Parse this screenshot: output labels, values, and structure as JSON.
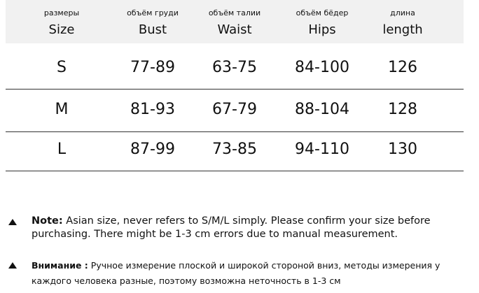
{
  "table": {
    "headers": [
      {
        "ru": "размеры",
        "en": "Size"
      },
      {
        "ru": "объём груди",
        "en": "Bust"
      },
      {
        "ru": "объём талии",
        "en": "Waist"
      },
      {
        "ru": "объём бёдер",
        "en": "Hips"
      },
      {
        "ru": "длина",
        "en": "length"
      }
    ],
    "rows": [
      [
        "S",
        "77-89",
        "63-75",
        "84-100",
        "126"
      ],
      [
        "M",
        "81-93",
        "67-79",
        "88-104",
        "128"
      ],
      [
        "L",
        "87-99",
        "73-85",
        "94-110",
        "130"
      ]
    ]
  },
  "notes": [
    {
      "label": "Note:",
      "text": "Asian size, never refers to S/M/L simply. Please confirm your size before purchasing. There might be 1-3 cm errors due to manual measurement."
    },
    {
      "label": "Внимание :",
      "text": "Ручное измерение плоской и широкой стороной вниз, методы измерения у каждого человека разные, поэтому возможна неточность в 1-3 см"
    }
  ]
}
